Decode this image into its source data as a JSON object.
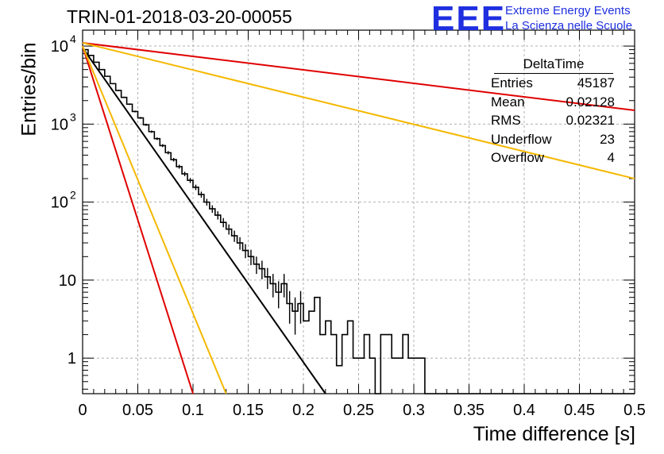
{
  "header": {
    "title": "TRIN-01-2018-03-20-00055",
    "logo": "EEE",
    "logo_line1": "Extreme Energy Events",
    "logo_line2": "La Scienza nelle Scuole"
  },
  "stats": {
    "title": "DeltaTime",
    "rows": [
      {
        "label": "Entries",
        "value": "45187"
      },
      {
        "label": "Mean",
        "value": "0.02128"
      },
      {
        "label": "RMS",
        "value": "0.02321"
      },
      {
        "label": "Underflow",
        "value": "23"
      },
      {
        "label": "Overflow",
        "value": "4"
      }
    ]
  },
  "chart_data": {
    "type": "line",
    "xlabel": "Time difference [s]",
    "ylabel": "Entries/bin",
    "xlim": [
      0,
      0.5
    ],
    "ylim": [
      0.35,
      16000
    ],
    "yscale": "log",
    "grid": true,
    "x_ticks": [
      "0",
      "0.05",
      "0.1",
      "0.15",
      "0.2",
      "0.25",
      "0.3",
      "0.35",
      "0.4",
      "0.45",
      "0.5"
    ],
    "y_ticks": [
      {
        "value": 1,
        "label": "1"
      },
      {
        "value": 10,
        "label": "10"
      },
      {
        "value": 100,
        "label": "10",
        "exp": "2"
      },
      {
        "value": 1000,
        "label": "10",
        "exp": "3"
      },
      {
        "value": 10000,
        "label": "10",
        "exp": "4"
      }
    ],
    "histogram": {
      "bin_width": 0.005,
      "counts": [
        9000,
        7600,
        6200,
        5000,
        4100,
        3300,
        2700,
        2200,
        1800,
        1450,
        1200,
        980,
        800,
        650,
        530,
        430,
        350,
        285,
        230,
        190,
        155,
        125,
        100,
        82,
        68,
        55,
        45,
        37,
        30,
        24,
        20,
        16,
        14,
        11,
        9,
        7,
        9,
        5,
        4,
        5,
        3,
        4,
        6,
        2,
        3,
        2,
        0.8,
        2,
        3,
        1,
        1,
        2,
        1,
        0,
        2,
        2,
        1,
        1,
        2,
        1,
        1,
        1,
        0,
        0,
        0,
        0,
        0,
        0,
        0,
        0,
        0,
        0,
        0,
        0,
        0,
        0,
        0,
        0,
        0,
        0,
        0,
        0,
        0,
        0,
        0,
        0,
        0,
        0,
        0,
        0,
        0,
        0,
        0,
        0,
        0,
        0,
        0,
        0,
        0,
        0
      ],
      "color": "#000000"
    },
    "fits": [
      {
        "x": [
          0,
          0.22
        ],
        "y": [
          9500,
          0.35
        ],
        "color": "#000000"
      },
      {
        "x": [
          0,
          0.1
        ],
        "y": [
          10000,
          0.35
        ],
        "color": "#e00000"
      },
      {
        "x": [
          0,
          0.13
        ],
        "y": [
          10000,
          0.35
        ],
        "color": "#f5b800"
      },
      {
        "x": [
          0,
          0.5
        ],
        "y": [
          11000,
          1500
        ],
        "color": "#e00000"
      },
      {
        "x": [
          0,
          0.5
        ],
        "y": [
          11000,
          200
        ],
        "color": "#f5b800"
      }
    ]
  }
}
